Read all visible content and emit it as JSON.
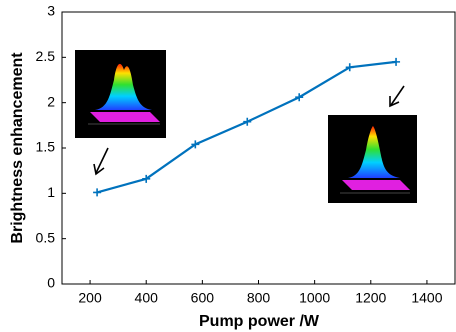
{
  "chart_data": {
    "type": "line",
    "x_label": "Pump power /W",
    "y_label": "Brightness enhancement",
    "x": [
      225,
      400,
      575,
      760,
      945,
      1125,
      1290
    ],
    "series": [
      {
        "color": "#0072bd",
        "values": [
          1.01,
          1.16,
          1.54,
          1.79,
          2.06,
          2.39,
          2.45
        ]
      }
    ],
    "xlim": [
      100,
      1500
    ],
    "xticks": [
      200,
      400,
      600,
      800,
      1000,
      1200,
      1400
    ],
    "ylim": [
      0,
      3
    ],
    "yticks": [
      0,
      0.5,
      1,
      1.5,
      2,
      2.5,
      3
    ],
    "grid": false
  }
}
